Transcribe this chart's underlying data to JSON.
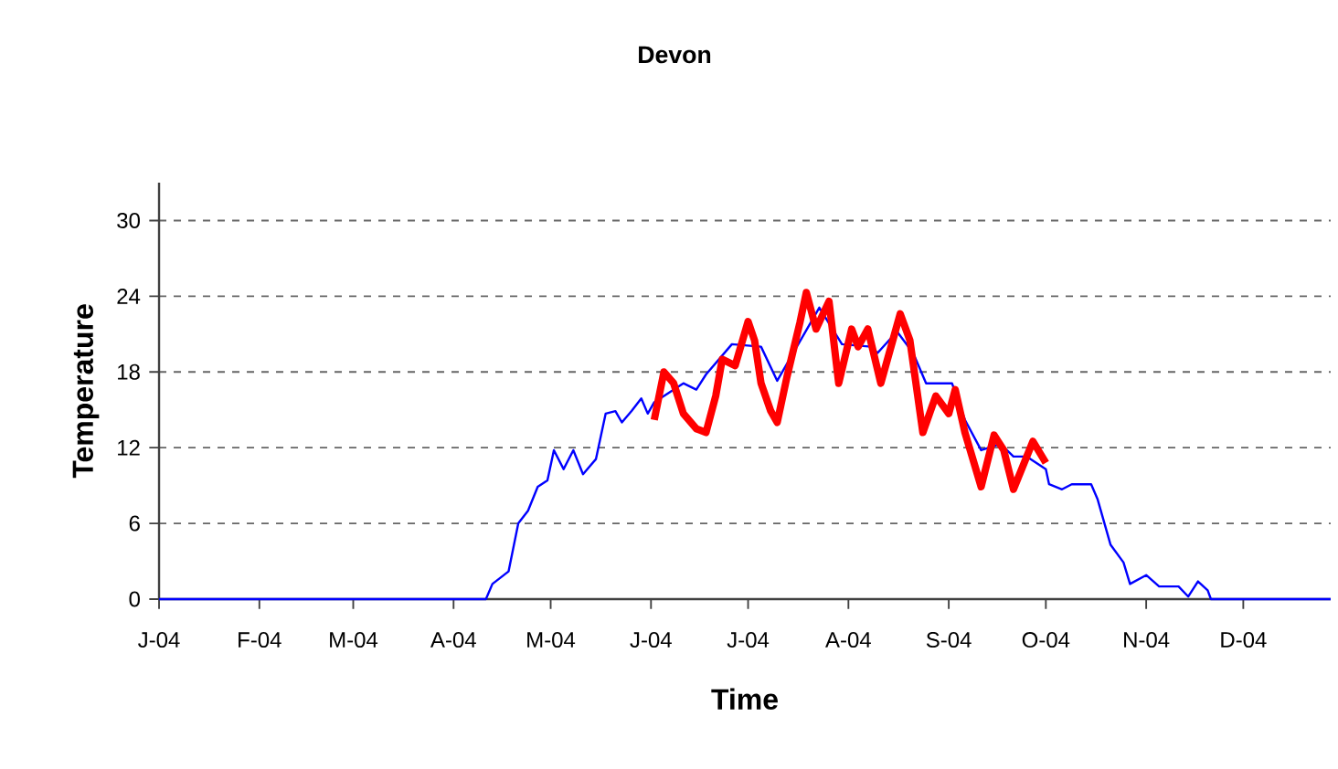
{
  "chart_data": {
    "type": "line",
    "title": "Devon",
    "xlabel": "Time",
    "ylabel": "Temperature",
    "xlim": [
      "2004-01-01",
      "2004-12-28"
    ],
    "xticks": [
      {
        "value": "2004-01-01",
        "label": "J-04"
      },
      {
        "value": "2004-02-01",
        "label": "F-04"
      },
      {
        "value": "2004-03-01",
        "label": "M-04"
      },
      {
        "value": "2004-04-01",
        "label": "A-04"
      },
      {
        "value": "2004-05-01",
        "label": "M-04"
      },
      {
        "value": "2004-06-01",
        "label": "J-04"
      },
      {
        "value": "2004-07-01",
        "label": "J-04"
      },
      {
        "value": "2004-08-01",
        "label": "A-04"
      },
      {
        "value": "2004-09-01",
        "label": "S-04"
      },
      {
        "value": "2004-10-01",
        "label": "O-04"
      },
      {
        "value": "2004-11-01",
        "label": "N-04"
      },
      {
        "value": "2004-12-01",
        "label": "D-04"
      }
    ],
    "ylim": [
      0,
      33
    ],
    "yticks": [
      0,
      6,
      12,
      18,
      24,
      30
    ],
    "grid": "y",
    "series": [
      {
        "color": "#0000ff",
        "x": [
          "2004-01-01",
          "2004-04-11",
          "2004-04-13",
          "2004-04-18",
          "2004-04-21",
          "2004-04-24",
          "2004-04-27",
          "2004-04-30",
          "2004-05-02",
          "2004-05-05",
          "2004-05-08",
          "2004-05-11",
          "2004-05-15",
          "2004-05-18",
          "2004-05-21",
          "2004-05-23",
          "2004-05-26",
          "2004-05-29",
          "2004-05-31",
          "2004-06-02",
          "2004-06-11",
          "2004-06-15",
          "2004-06-18",
          "2004-06-26",
          "2004-07-05",
          "2004-07-10",
          "2004-07-15",
          "2004-07-23",
          "2004-07-30",
          "2004-08-08",
          "2004-08-10",
          "2004-08-16",
          "2004-08-21",
          "2004-08-25",
          "2004-09-02",
          "2004-09-06",
          "2004-09-11",
          "2004-09-17",
          "2004-09-21",
          "2004-09-25",
          "2004-10-01",
          "2004-10-02",
          "2004-10-06",
          "2004-10-09",
          "2004-10-15",
          "2004-10-17",
          "2004-10-21",
          "2004-10-25",
          "2004-10-27",
          "2004-11-01",
          "2004-11-05",
          "2004-11-11",
          "2004-11-14",
          "2004-11-17",
          "2004-11-20",
          "2004-11-21",
          "2004-12-28"
        ],
        "values": [
          0,
          0,
          1.2,
          2.2,
          6,
          7,
          8.9,
          9.4,
          11.8,
          10.3,
          11.8,
          9.9,
          11.1,
          14.7,
          14.9,
          14.0,
          14.9,
          15.9,
          14.7,
          15.6,
          17.1,
          16.6,
          17.8,
          20.2,
          20,
          17.3,
          null,
          23.1,
          20.2,
          20,
          19.5,
          21.2,
          19.5,
          17.1,
          17.1,
          14.2,
          11.8,
          12.3,
          11.3,
          11.3,
          10.3,
          9.1,
          8.7,
          9.1,
          9.1,
          7.9,
          4.3,
          2.9,
          1.2,
          1.9,
          1.0,
          1.0,
          0.2,
          1.4,
          0.7,
          0,
          0
        ]
      },
      {
        "color": "#ff0000",
        "x": [
          "2004-06-02",
          "2004-06-05",
          "2004-06-08",
          "2004-06-11",
          "2004-06-15",
          "2004-06-18",
          "2004-06-21",
          "2004-06-23",
          "2004-06-27",
          "2004-07-01",
          "2004-07-03",
          "2004-07-05",
          "2004-07-08",
          "2004-07-10",
          "2004-07-13",
          "2004-07-17",
          "2004-07-19",
          "2004-07-22",
          "2004-07-26",
          "2004-07-29",
          "2004-08-02",
          "2004-08-04",
          "2004-08-07",
          "2004-08-11",
          "2004-08-17",
          "2004-08-20",
          "2004-08-24",
          "2004-08-28",
          "2004-09-01",
          "2004-09-03",
          "2004-09-06",
          "2004-09-11",
          "2004-09-15",
          "2004-09-18",
          "2004-09-21",
          "2004-09-27",
          "2004-10-01"
        ],
        "values": [
          14.2,
          18,
          17.1,
          14.7,
          13.5,
          13.2,
          16.1,
          19,
          18.5,
          22,
          20.5,
          17.1,
          14.9,
          14,
          17.6,
          21.9,
          24.3,
          21.4,
          23.6,
          17.1,
          21.4,
          20,
          21.4,
          17.1,
          22.6,
          20.5,
          13.2,
          16.1,
          14.7,
          16.6,
          13.2,
          8.9,
          13,
          11.8,
          8.7,
          12.5,
          10.8
        ]
      }
    ]
  }
}
